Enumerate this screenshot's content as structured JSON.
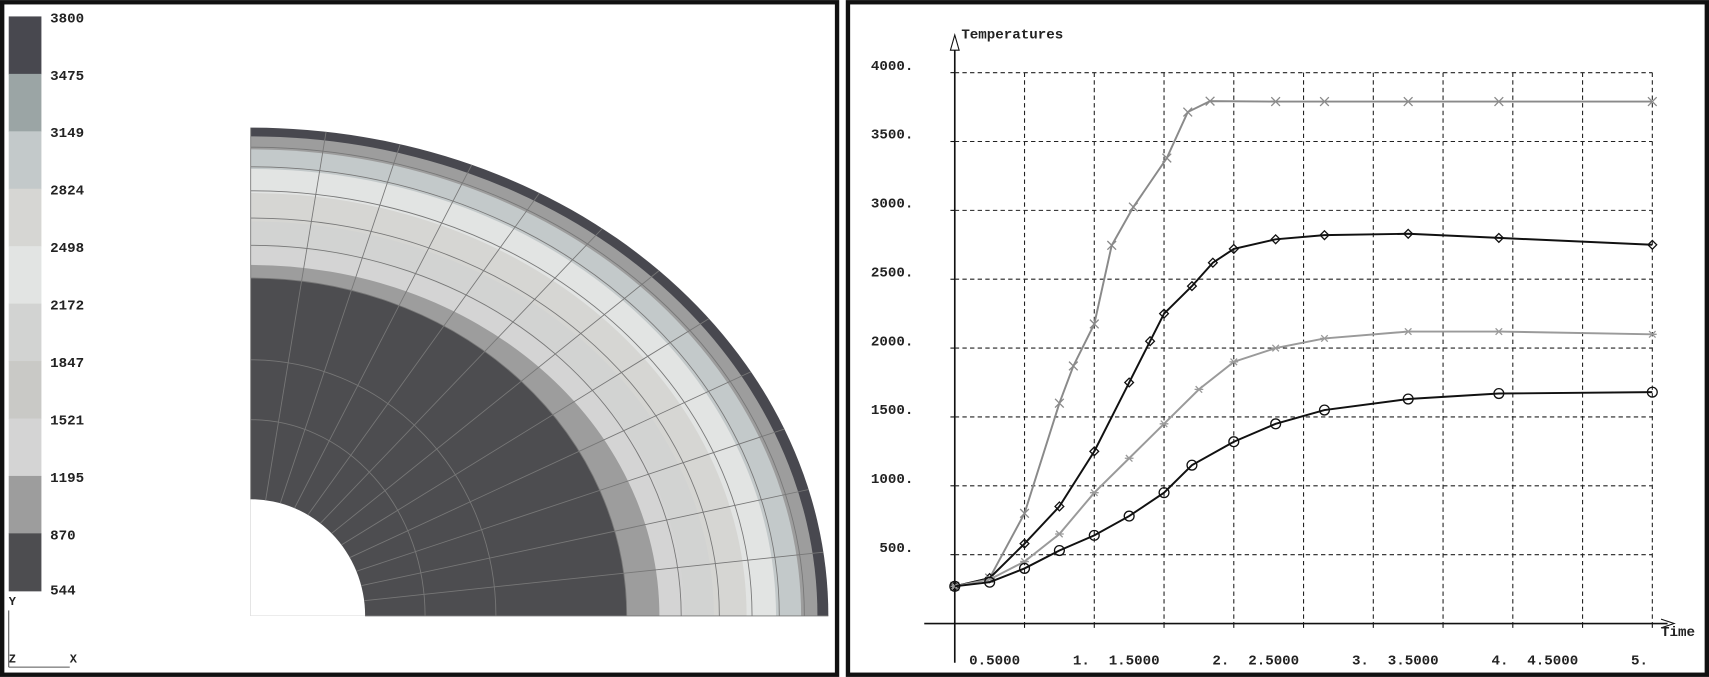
{
  "chart_data": [
    {
      "type": "contour",
      "levels": [
        3800,
        3475,
        3149,
        2824,
        2498,
        2172,
        1847,
        1521,
        1195,
        870,
        544
      ],
      "colors": [
        "#48484f",
        "#9ba5a5",
        "#c3c9ca",
        "#d6d6d3",
        "#e2e4e3",
        "#d2d3d2",
        "#c9c9c6",
        "#d4d4d4",
        "#9d9d9d",
        "#4d4d50"
      ],
      "axis_labels": {
        "y": "Y",
        "z": "Z",
        "x": "X"
      }
    },
    {
      "type": "line",
      "ylabel": "Temperatures",
      "xlabel": "Time",
      "xlim": [
        0,
        5.1
      ],
      "ylim": [
        0,
        4250
      ],
      "xticks": [
        {
          "value": 0.5,
          "label": "0.5000"
        },
        {
          "value": 1,
          "label": "1."
        },
        {
          "value": 1.5,
          "label": "1.5000"
        },
        {
          "value": 2,
          "label": "2."
        },
        {
          "value": 2.5,
          "label": "2.5000"
        },
        {
          "value": 3,
          "label": "3."
        },
        {
          "value": 3.5,
          "label": "3.5000"
        },
        {
          "value": 4,
          "label": "4."
        },
        {
          "value": 4.5,
          "label": "4.5000"
        },
        {
          "value": 5,
          "label": "5."
        }
      ],
      "yticks": [
        {
          "value": 500,
          "label": "500."
        },
        {
          "value": 1000,
          "label": "1000."
        },
        {
          "value": 1500,
          "label": "1500."
        },
        {
          "value": 2000,
          "label": "2000."
        },
        {
          "value": 2500,
          "label": "2500."
        },
        {
          "value": 3000,
          "label": "3000."
        },
        {
          "value": 3500,
          "label": "3500."
        },
        {
          "value": 4000,
          "label": "4000."
        }
      ],
      "grid": true,
      "series": [
        {
          "color": "#8a8a8a",
          "marker": "x",
          "x": [
            0,
            0.25,
            0.5,
            0.75,
            0.85,
            1,
            1.125,
            1.28,
            1.52,
            1.67,
            1.83,
            2.3,
            2.65,
            3.25,
            3.9,
            5
          ],
          "values": [
            270,
            330,
            800,
            1600,
            1870,
            2175,
            2746,
            3024,
            3380,
            3714,
            3793,
            3790,
            3790,
            3790,
            3790,
            3790
          ]
        },
        {
          "color": "#111111",
          "marker": "diamond",
          "x": [
            0,
            0.25,
            0.5,
            0.75,
            1,
            1.25,
            1.4,
            1.5,
            1.7,
            1.85,
            2,
            2.3,
            2.65,
            3.25,
            3.9,
            5
          ],
          "values": [
            270,
            330,
            580,
            850,
            1250,
            1750,
            2050,
            2250,
            2450,
            2620,
            2720,
            2790,
            2820,
            2830,
            2800,
            2750
          ]
        },
        {
          "color": "#9a9a9a",
          "marker": "asterisk",
          "x": [
            0,
            0.25,
            0.5,
            0.75,
            1,
            1.25,
            1.5,
            1.75,
            2,
            2.3,
            2.65,
            3.25,
            3.9,
            5
          ],
          "values": [
            270,
            320,
            450,
            650,
            950,
            1200,
            1450,
            1700,
            1900,
            2000,
            2070,
            2120,
            2120,
            2100
          ]
        },
        {
          "color": "#111111",
          "marker": "circle",
          "x": [
            0,
            0.25,
            0.5,
            0.75,
            1,
            1.25,
            1.5,
            1.7,
            2,
            2.3,
            2.65,
            3.25,
            3.9,
            5
          ],
          "values": [
            270,
            300,
            400,
            530,
            640,
            780,
            950,
            1150,
            1320,
            1450,
            1550,
            1630,
            1670,
            1680
          ]
        }
      ]
    }
  ]
}
